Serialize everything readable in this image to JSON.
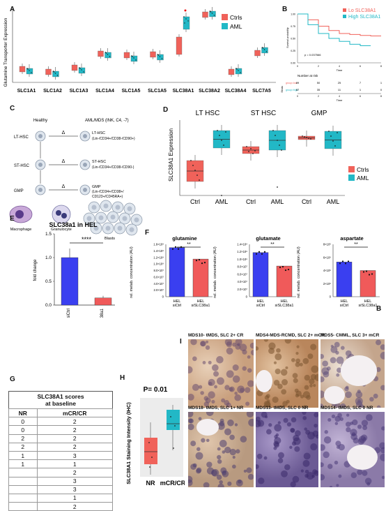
{
  "panel_labels": {
    "A": "A",
    "B": "B",
    "C": "C",
    "D": "D",
    "E": "E",
    "F": "F",
    "G": "G",
    "H": "H",
    "I": "I",
    "B2": "B"
  },
  "colors": {
    "ctrl": "#f0625a",
    "aml": "#22b8c6",
    "bar_blue": "#3a3ff0",
    "bar_red": "#f05a5a"
  },
  "panelA": {
    "ylabel": "Glutamine Transporter Expression",
    "legend": [
      {
        "label": "Ctrls",
        "color": "#f0625a"
      },
      {
        "label": "AML",
        "color": "#22b8c6"
      }
    ],
    "genes": [
      "SLC1A1",
      "SLC1A2",
      "SLC1A3",
      "SLC1A4",
      "SLC1A5",
      "SLC1A5",
      "SLC38A1",
      "SLC38A2",
      "SLC38A4",
      "SLC7A5"
    ]
  },
  "panelB": {
    "legend": [
      "Lo SLC38A1",
      "High SLC38A1"
    ],
    "ylabel": "Survival probability",
    "xlabel": "Time",
    "pvalue": "p = 0.037566",
    "yticks": [
      "1.00",
      "0.75",
      "0.50",
      "0.25",
      "0.00"
    ],
    "xticks": [
      "0",
      "2",
      "4",
      "6",
      "8"
    ],
    "risk_title": "Number at risk",
    "risk_rows": [
      {
        "name": "group=low",
        "values": [
          "89",
          "50",
          "25",
          "7",
          "1"
        ]
      },
      {
        "name": "group=high",
        "values": [
          "87",
          "35",
          "11",
          "1",
          "0"
        ]
      }
    ],
    "risk_ylabel": "Strata"
  },
  "panelC": {
    "healthy": "Healthy",
    "aml": "AML/MDS (INK, C4, -7)",
    "lthsc": "LT-HSC",
    "sthsc": "ST-HSC",
    "gmp": "GMP",
    "lthsc_r": "LT-HSC",
    "lthsc_r2": "(Lin-/CD34+/CD38-/CD90+)",
    "sthsc_r": "ST-HSC",
    "sthsc_r2": "(Lin-/CD34+/CD38-/CD90-)",
    "gmp_r": "GMP",
    "gmp_r2": "(Lin-/CD34+/CD38+/",
    "gmp_r3": "CD123+/CD45RA+)",
    "delta": "Δ",
    "macrophage": "Macrophage",
    "granulocyte": "Granulocyte",
    "blasts": "Blasts"
  },
  "panelD": {
    "ylabel": "SLC38A1 Expression",
    "groups": [
      "LT HSC",
      "ST HSC",
      "GMP"
    ],
    "xlabels": [
      "Ctrl",
      "AML",
      "Ctrl",
      "AML",
      "Ctrl",
      "AML"
    ],
    "legend": [
      {
        "label": "Ctrls",
        "color": "#f0625a"
      },
      {
        "label": "AML",
        "color": "#22b8c6"
      }
    ]
  },
  "panelE": {
    "title": "SLC38a1 in HEL",
    "ylabel": "fold change",
    "yticks": [
      "1.5",
      "1.0",
      "0.5",
      "0.0"
    ],
    "stars": "****",
    "categories": [
      "siCtrl",
      "siSLC38a1"
    ]
  },
  "panelF": {
    "ylabel": "rel. metab. concentration (AU)",
    "stars": "**",
    "charts": [
      {
        "title": "glutamine",
        "yticks": [
          "1.6×10⁸",
          "1.4×10⁸",
          "1.2×10⁸",
          "1.0×10⁸",
          "8.0×10⁷",
          "6.0×10⁷",
          "4.0×10⁷",
          "2.0×10⁷",
          "0"
        ]
      },
      {
        "title": "glutamate",
        "yticks": [
          "1.4×10⁸",
          "1.2×10⁸",
          "1.0×10⁸",
          "8.0×10⁷",
          "6.0×10⁷",
          "4.0×10⁷",
          "2.0×10⁷",
          "0"
        ]
      },
      {
        "title": "aspartate",
        "yticks": [
          "8×10⁶",
          "6×10⁶",
          "4×10⁶",
          "2×10⁶",
          "0"
        ]
      }
    ],
    "cat1": "HEL",
    "cat1b": "siCtrl",
    "cat2": "HEL",
    "cat2b": "siSLC38a1"
  },
  "panelG": {
    "title1": "SLC38A1 scores",
    "title2": "at baseline",
    "headers": [
      "NR",
      "mCR/CR"
    ],
    "rows": [
      [
        "0",
        "2"
      ],
      [
        "0",
        "2"
      ],
      [
        "2",
        "2"
      ],
      [
        "2",
        "2"
      ],
      [
        "1",
        "3"
      ],
      [
        "1",
        "1"
      ],
      [
        "",
        "2"
      ],
      [
        "",
        "3"
      ],
      [
        "",
        "3"
      ],
      [
        "",
        "1"
      ],
      [
        "",
        "2"
      ]
    ]
  },
  "panelH": {
    "pvalue": "P= 0.01",
    "ylabel": "SLC38A1 Staining Intensity (IHC)",
    "categories": [
      "NR",
      "mCR/CR"
    ]
  },
  "panelI": {
    "captions": [
      "MDS10- tMDS, SLC 2+ CR",
      "MDS4-MDS-RCMD, SLC 2+ mCR",
      "MDS5- CMML, SLC 3+ mCR",
      "MDS18- tMDS, SLC 1+ NR",
      "MDS13- tMDS, SLC 0 NR",
      "MDS14- tMDS, SLC 0 NR"
    ]
  },
  "chart_data": [
    {
      "type": "bar",
      "title": "SLC38a1 in HEL",
      "categories": [
        "siCtrl",
        "siSLC38a1"
      ],
      "values": [
        1.0,
        0.15
      ],
      "ylabel": "fold change",
      "ylim": [
        0,
        1.5
      ]
    },
    {
      "type": "bar",
      "title": "glutamine",
      "categories": [
        "HEL siCtrl",
        "HEL siSLC38a1"
      ],
      "values": [
        150000000,
        115000000
      ],
      "ylim": [
        0,
        160000000
      ]
    },
    {
      "type": "bar",
      "title": "glutamate",
      "categories": [
        "HEL siCtrl",
        "HEL siSLC38a1"
      ],
      "values": [
        118000000,
        82000000
      ],
      "ylim": [
        0,
        140000000
      ]
    },
    {
      "type": "bar",
      "title": "aspartate",
      "categories": [
        "HEL siCtrl",
        "HEL siSLC38a1"
      ],
      "values": [
        5300000,
        4000000
      ],
      "ylim": [
        0,
        8000000
      ]
    },
    {
      "type": "line",
      "title": "",
      "xlabel": "Time",
      "ylabel": "Survival probability",
      "series": [
        {
          "name": "Lo SLC38A1",
          "x": [
            0,
            1,
            2,
            3,
            4,
            5,
            6,
            7,
            8
          ],
          "y": [
            1.0,
            0.88,
            0.75,
            0.66,
            0.6,
            0.58,
            0.56,
            0.55,
            0.55
          ]
        },
        {
          "name": "High SLC38A1",
          "x": [
            0,
            1,
            2,
            3,
            4,
            5,
            6,
            7
          ],
          "y": [
            1.0,
            0.78,
            0.6,
            0.5,
            0.44,
            0.38,
            0.35,
            0.35
          ]
        }
      ]
    }
  ]
}
